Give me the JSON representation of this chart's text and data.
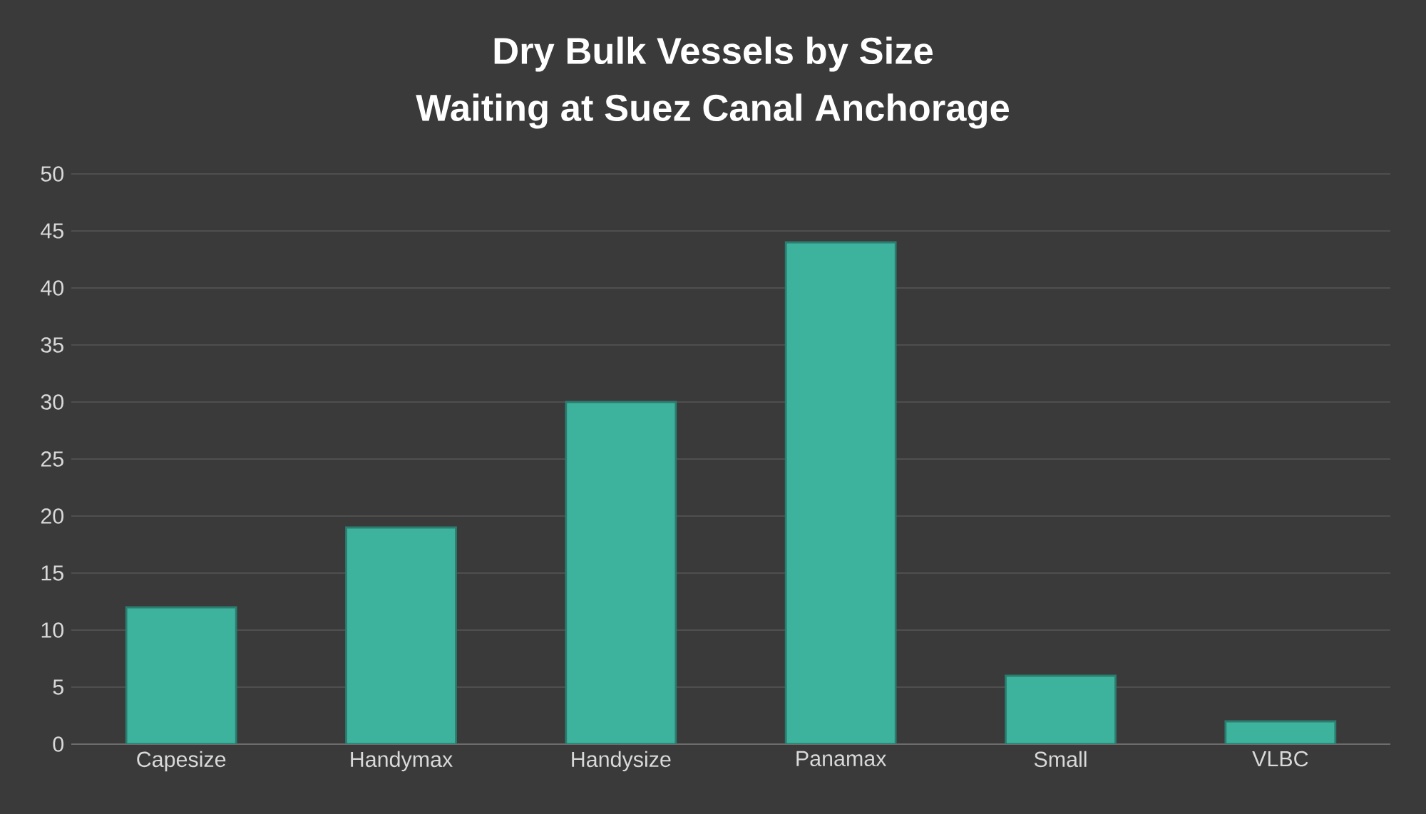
{
  "chart_data": {
    "type": "bar",
    "title": "Dry Bulk Vessels by Size",
    "subtitle": "Waiting at Suez Canal Anchorage",
    "categories": [
      "Capesize",
      "Handymax",
      "Handysize",
      "Panamax",
      "Small",
      "VLBC"
    ],
    "values": [
      12,
      19,
      30,
      44,
      6,
      2
    ],
    "color": "#3db39e",
    "ylim": [
      0,
      50
    ],
    "yticks": [
      0,
      5,
      10,
      15,
      20,
      25,
      30,
      35,
      40,
      45,
      50
    ],
    "grid": "y"
  }
}
